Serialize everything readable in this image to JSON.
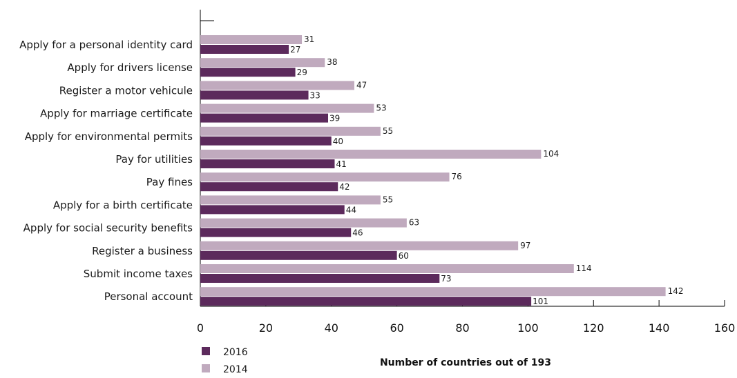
{
  "chart_data": {
    "type": "bar",
    "orientation": "horizontal",
    "categories": [
      "Apply for a personal identity card",
      "Apply for drivers license",
      "Register a motor vehicule",
      "Apply for marriage certificate",
      "Apply for environmental permits",
      "Pay for utilities",
      "Pay fines",
      "Apply for a birth certificate",
      "Apply for social security benefits",
      "Register a business",
      "Submit income taxes",
      "Personal account"
    ],
    "series": [
      {
        "name": "2014",
        "color": "#c0aabe",
        "values": [
          31,
          38,
          47,
          53,
          55,
          104,
          76,
          55,
          63,
          97,
          114,
          142
        ],
        "labels": [
          "31",
          "38",
          "47",
          "53",
          "55",
          "104",
          "76",
          "55",
          "63",
          "97",
          "114",
          "142"
        ]
      },
      {
        "name": "2016",
        "color": "#5c2a5c",
        "values": [
          27,
          29,
          33,
          39,
          40,
          41,
          42,
          44,
          46,
          60,
          73,
          101
        ],
        "labels": [
          "27",
          "29",
          "33",
          "39",
          "40",
          "41",
          "42",
          "44",
          "46",
          "60",
          "73",
          "101"
        ]
      }
    ],
    "xlim": [
      0,
      160
    ],
    "xticks": [
      0,
      20,
      40,
      60,
      80,
      100,
      120,
      140,
      160
    ],
    "xtick_labels": [
      "0",
      "20",
      "40",
      "60",
      "80",
      "100",
      "120",
      "140",
      "160"
    ],
    "xlabel": "Number of countries out of 193",
    "ylabel": "",
    "title": "",
    "legend": [
      {
        "name": "2016",
        "color": "#5c2a5c"
      },
      {
        "name": "2014",
        "color": "#c0aabe"
      }
    ],
    "legend_position": "bottom-left",
    "grid": false
  }
}
